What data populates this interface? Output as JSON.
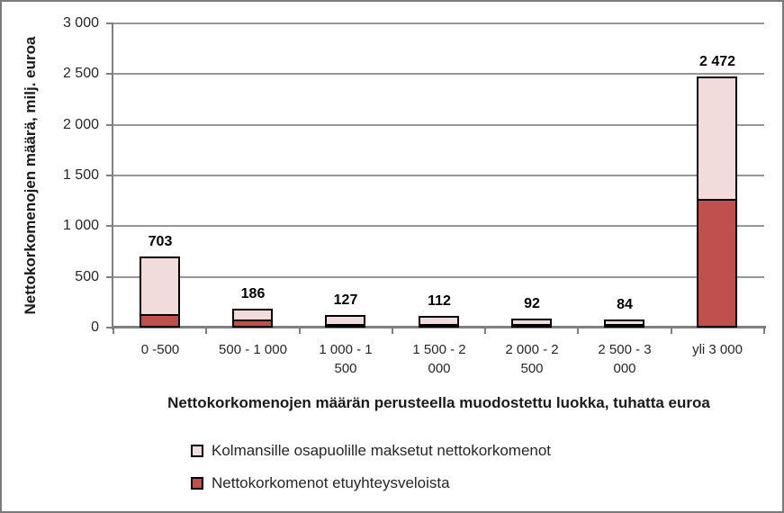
{
  "chart_data": {
    "type": "bar",
    "stacked": true,
    "y_title": "Nettokorkomenojen määrä, milj. euroa",
    "x_title": "Nettokorkomenojen määrän perusteella muodostettu luokka, tuhatta euroa",
    "categories": [
      "0 -500",
      "500 - 1 000",
      "1 000 - 1 500",
      "1 500 - 2 000",
      "2 000 - 2 500",
      "2 500 - 3 000",
      "yli 3 000"
    ],
    "totals_labels": [
      "703",
      "186",
      "127",
      "112",
      "92",
      "84",
      "2 472"
    ],
    "totals_values": [
      703,
      186,
      127,
      112,
      92,
      84,
      2472
    ],
    "series": [
      {
        "name": "Nettokorkomenot etuyhteysveloista",
        "color": "#c0504d",
        "values": [
          134,
          82,
          33,
          27,
          23,
          20,
          1265
        ]
      },
      {
        "name": "Kolmansille osapuolille maksetut nettokorkomenot",
        "color": "#f2dcdb",
        "values": [
          569,
          104,
          94,
          85,
          69,
          64,
          1207
        ]
      }
    ],
    "ylim": [
      0,
      3000
    ],
    "y_ticks": [
      "0",
      "500",
      "1 000",
      "1 500",
      "2 000",
      "2 500",
      "3 000"
    ],
    "grid": true,
    "legend_position": "bottom-left",
    "legend": [
      {
        "label": "Kolmansille osapuolille maksetut nettokorkomenot",
        "color": "#f2dcdb"
      },
      {
        "label": "Nettokorkomenot etuyhteysveloista",
        "color": "#c0504d"
      }
    ]
  },
  "colors": {
    "third_party_fill": "#f2dcdb",
    "related_party_fill": "#c0504d",
    "bar_border": "#000000",
    "gridline": "#969696",
    "axis": "#808080",
    "frame_border": "#7a7a7a",
    "text": "#262626"
  }
}
